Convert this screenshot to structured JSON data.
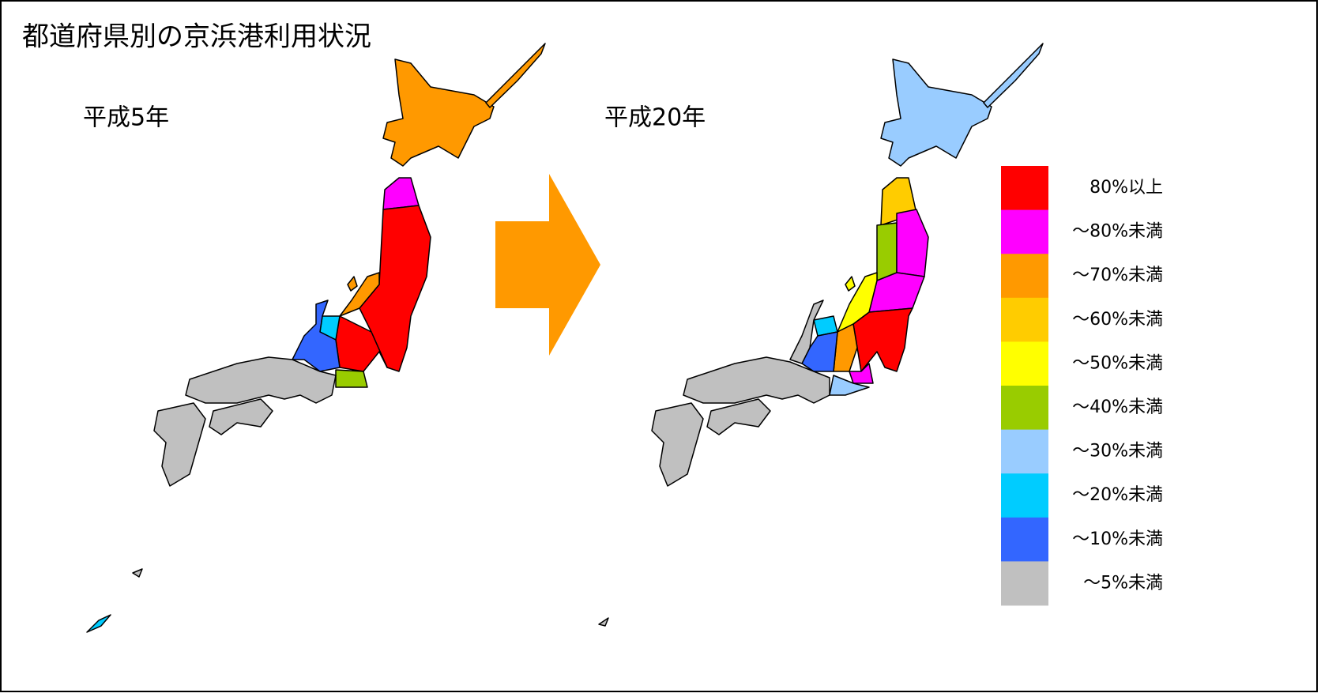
{
  "title": "都道府県別の京浜港利用状況",
  "maps": [
    {
      "label": "平成5年"
    },
    {
      "label": "平成20年"
    }
  ],
  "legend": [
    {
      "label": "80%以上",
      "color": "#ff0000"
    },
    {
      "label": "〜80%未満",
      "color": "#ff00ff"
    },
    {
      "label": "〜70%未満",
      "color": "#ff9900"
    },
    {
      "label": "〜60%未満",
      "color": "#ffcc00"
    },
    {
      "label": "〜50%未満",
      "color": "#ffff00"
    },
    {
      "label": "〜40%未満",
      "color": "#99cc00"
    },
    {
      "label": "〜30%未満",
      "color": "#99ccff"
    },
    {
      "label": "〜20%未満",
      "color": "#00ccff"
    },
    {
      "label": "〜10%未満",
      "color": "#3366ff"
    },
    {
      "label": "〜5%未満",
      "color": "#c0c0c0"
    }
  ]
}
